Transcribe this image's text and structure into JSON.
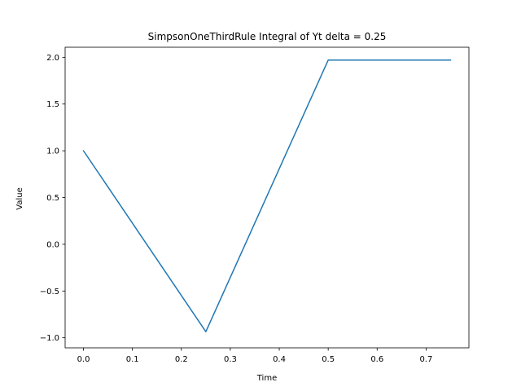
{
  "chart_data": {
    "type": "line",
    "title": "SimpsonOneThirdRule Integral of Yt delta = 0.25",
    "xlabel": "Time",
    "ylabel": "Value",
    "xlim": [
      -0.0375,
      0.7875
    ],
    "ylim": [
      -1.1075,
      2.1075
    ],
    "xticks": [
      0.0,
      0.1,
      0.2,
      0.3,
      0.4,
      0.5,
      0.6,
      0.7
    ],
    "xtick_labels": [
      "0.0",
      "0.1",
      "0.2",
      "0.3",
      "0.4",
      "0.5",
      "0.6",
      "0.7"
    ],
    "yticks": [
      -1.0,
      -0.5,
      0.0,
      0.5,
      1.0,
      1.5,
      2.0
    ],
    "ytick_labels": [
      "−1.0",
      "−0.5",
      "0.0",
      "0.5",
      "1.0",
      "1.5",
      "2.0"
    ],
    "grid": false,
    "series": [
      {
        "color": "#1f77b4",
        "x": [
          0.0,
          0.25,
          0.5,
          0.75
        ],
        "y": [
          1.0,
          -0.935,
          1.97,
          1.97
        ]
      }
    ]
  }
}
